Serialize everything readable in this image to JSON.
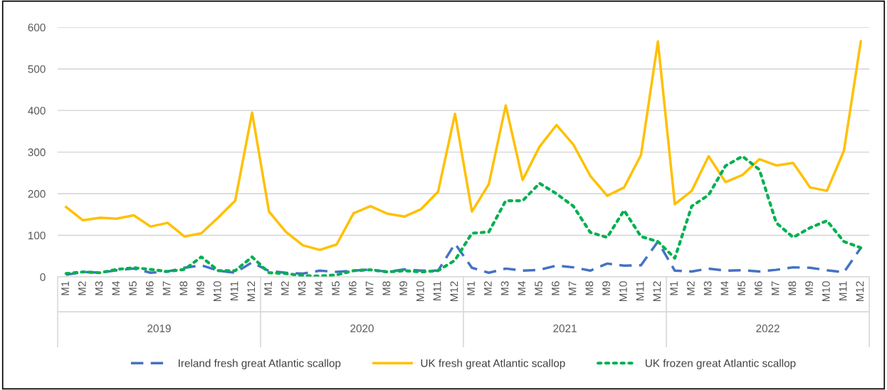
{
  "chart_data": {
    "type": "line",
    "categories": [
      "M1",
      "M2",
      "M3",
      "M4",
      "M5",
      "M6",
      "M7",
      "M8",
      "M9",
      "M10",
      "M11",
      "M12",
      "M1",
      "M2",
      "M3",
      "M4",
      "M5",
      "M6",
      "M7",
      "M8",
      "M9",
      "M10",
      "M11",
      "M12",
      "M1",
      "M2",
      "M3",
      "M4",
      "M5",
      "M6",
      "M7",
      "M8",
      "M9",
      "M10",
      "M11",
      "M12",
      "M1",
      "M2",
      "M3",
      "M4",
      "M5",
      "M6",
      "M7",
      "M8",
      "M9",
      "M10",
      "M11",
      "M12"
    ],
    "series": [
      {
        "name": "Ireland fresh great Atlantic scallop",
        "color": "#4472c4",
        "line_style": "dashed",
        "values": [
          5,
          12,
          10,
          16,
          20,
          10,
          13,
          22,
          28,
          15,
          10,
          35,
          14,
          10,
          8,
          15,
          12,
          15,
          18,
          12,
          18,
          15,
          15,
          80,
          22,
          10,
          20,
          15,
          17,
          27,
          23,
          15,
          32,
          27,
          28,
          85,
          15,
          13,
          20,
          15,
          16,
          13,
          17,
          23,
          22,
          16,
          11,
          70
        ]
      },
      {
        "name": "UK fresh great Atlantic scallop",
        "color": "#ffc000",
        "line_style": "solid",
        "values": [
          168,
          136,
          142,
          140,
          148,
          121,
          130,
          97,
          105,
          143,
          183,
          395,
          157,
          108,
          76,
          65,
          78,
          153,
          170,
          152,
          145,
          163,
          205,
          392,
          157,
          223,
          412,
          233,
          313,
          365,
          318,
          243,
          195,
          215,
          293,
          566,
          175,
          207,
          290,
          228,
          245,
          283,
          268,
          274,
          215,
          207,
          303,
          566
        ]
      },
      {
        "name": "UK frozen great Atlantic scallop",
        "color": "#00b050",
        "line_style": "dotted",
        "values": [
          8,
          12,
          10,
          18,
          22,
          18,
          13,
          18,
          48,
          15,
          15,
          48,
          10,
          8,
          3,
          2,
          5,
          15,
          17,
          12,
          15,
          12,
          15,
          40,
          105,
          108,
          183,
          183,
          225,
          200,
          170,
          107,
          95,
          160,
          97,
          85,
          45,
          170,
          197,
          267,
          290,
          258,
          130,
          95,
          118,
          135,
          85,
          70
        ]
      }
    ],
    "annotations": [
      "2019",
      "2020",
      "2021",
      "2022"
    ],
    "ylim": [
      0,
      600
    ],
    "yticks": [
      0,
      100,
      200,
      300,
      400,
      500,
      600
    ],
    "grid": "y",
    "legend": "bottom",
    "marker": "none"
  }
}
